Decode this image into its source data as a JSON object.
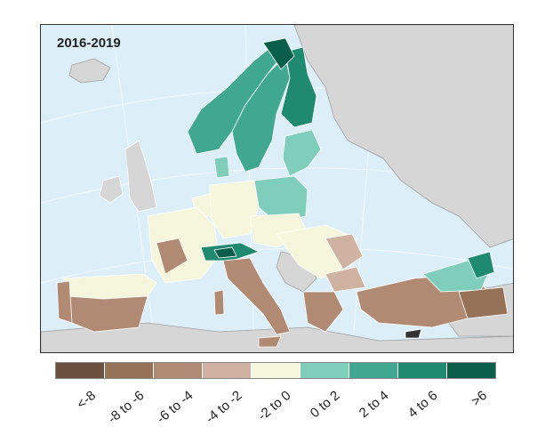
{
  "map": {
    "title": "2016-2019",
    "colors": {
      "sea": "#dceef8",
      "non_eu_land": "#d6d6d6",
      "border": "#ffffff",
      "outline": "#333333"
    }
  },
  "legend": {
    "items": [
      {
        "label": "<-8",
        "color": "#6b4f3f"
      },
      {
        "label": "-8 to -6",
        "color": "#957258"
      },
      {
        "label": "-6 to -4",
        "color": "#b08a73"
      },
      {
        "label": "-4 to -2",
        "color": "#cfb2a1"
      },
      {
        "label": "-2 to 0",
        "color": "#f6f6dc"
      },
      {
        "label": "0 to 2",
        "color": "#7fcdbb"
      },
      {
        "label": "2 to 4",
        "color": "#40a891"
      },
      {
        "label": "4 to 6",
        "color": "#1f8a70"
      },
      {
        "label": ">6",
        "color": "#0b5e49"
      }
    ]
  }
}
